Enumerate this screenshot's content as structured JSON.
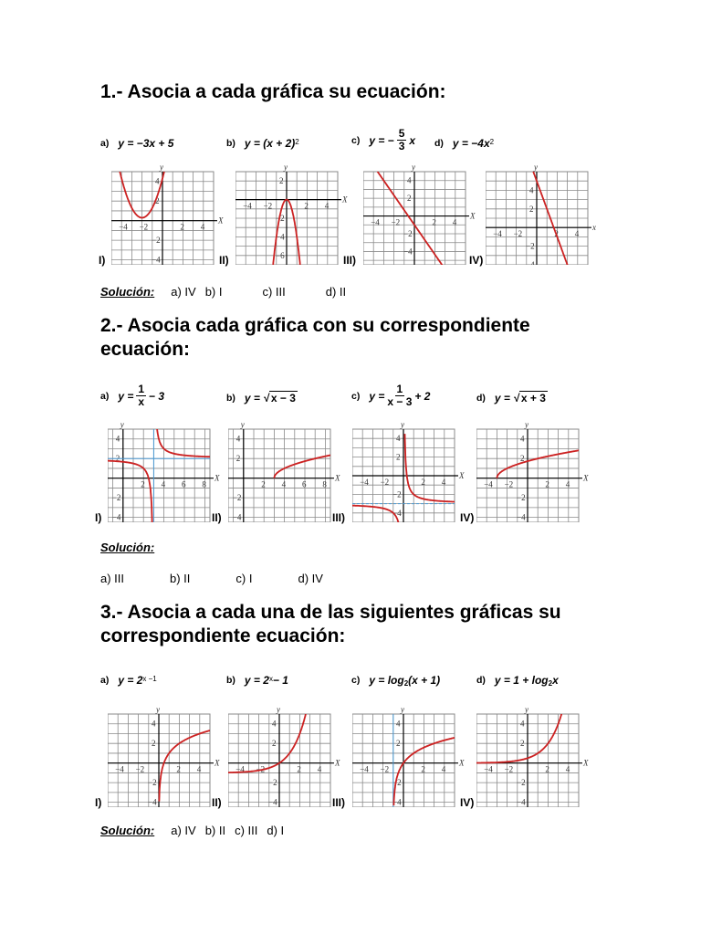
{
  "colors": {
    "curve": "#cc2222",
    "grid": "#8a8a8a",
    "asymptote": "#4a9ad4"
  },
  "sections": [
    {
      "title": "1.- Asocia a cada gráfica su ecuación:",
      "equations": [
        {
          "label": "a)",
          "lhs": "y = −3x + 5"
        },
        {
          "label": "b)",
          "lhs": "y = (x + 2)",
          "sup": "2"
        },
        {
          "label": "c)",
          "lhs": "y = −",
          "num": "5",
          "den": "3",
          "rhs": "x"
        },
        {
          "label": "d)",
          "lhs": "y = −4x",
          "sup": "2"
        }
      ],
      "graphs": [
        {
          "label": "I)",
          "xlim": [
            -5,
            5
          ],
          "ylim": [
            -4.5,
            5
          ],
          "fn": "sq_shift",
          "axis_x": "X",
          "axis_y": "y"
        },
        {
          "label": "II)",
          "xlim": [
            -5,
            5
          ],
          "ylim": [
            -7,
            3
          ],
          "fn": "neg4sq",
          "axis_x": "X",
          "axis_y": "y"
        },
        {
          "label": "III)",
          "xlim": [
            -5,
            5
          ],
          "ylim": [
            -5.5,
            5
          ],
          "fn": "lin53",
          "axis_x": "X",
          "axis_y": "y"
        },
        {
          "label": "IV)",
          "xlim": [
            -5,
            5
          ],
          "ylim": [
            -4,
            6
          ],
          "fn": "lin35",
          "axis_x": "x",
          "axis_y": "y"
        }
      ],
      "solution_label": "Solución:",
      "solution": [
        "a) IV",
        "b) I",
        "c) III",
        "d)  II"
      ]
    },
    {
      "title": "2.- Asocia cada gráfica con su correspondiente ecuación:",
      "equations": [
        {
          "label": "a)",
          "lhs": "y =",
          "num": "1",
          "den": "x",
          "rhs": "− 3"
        },
        {
          "label": "b)",
          "lhs": "y = √",
          "rad": "x − 3"
        },
        {
          "label": "c)",
          "lhs": "y =",
          "num": "1",
          "den": "x − 3",
          "rhs": "+ 2"
        },
        {
          "label": "d)",
          "lhs": "y = √",
          "rad": "x + 3"
        }
      ],
      "graphs": [
        {
          "label": "I)",
          "xlim": [
            -1.5,
            8.5
          ],
          "ylim": [
            -4.5,
            5
          ],
          "fn": "hyp_c",
          "asym": {
            "x": 3,
            "y": 2
          },
          "axis_x": "X",
          "axis_y": "y"
        },
        {
          "label": "II)",
          "xlim": [
            -1.5,
            8.5
          ],
          "ylim": [
            -4.5,
            5
          ],
          "fn": "sqrt_m3",
          "axis_x": "X",
          "axis_y": "y"
        },
        {
          "label": "III)",
          "xlim": [
            -5,
            5
          ],
          "ylim": [
            -5,
            5
          ],
          "fn": "hyp_a",
          "asym": {
            "y": -3
          },
          "axis_x": "X",
          "axis_y": "y"
        },
        {
          "label": "IV)",
          "xlim": [
            -5,
            5
          ],
          "ylim": [
            -4.5,
            5
          ],
          "fn": "sqrt_p3",
          "axis_x": "X",
          "axis_y": "y"
        }
      ],
      "solution_label": "Solución:",
      "solution": [
        "a) III",
        "b) II",
        "c) I",
        "d) IV"
      ]
    },
    {
      "title": "3.- Asocia a cada una de las siguientes gráficas su correspondiente ecuación:",
      "equations": [
        {
          "label": "a)",
          "lhs": "y = 2",
          "sup": "x −1"
        },
        {
          "label": "b)",
          "lhs": "y = 2",
          "sup": "x",
          "rhs": " − 1"
        },
        {
          "label": "c)",
          "lhs": "y = log",
          "sub": "2",
          "rhs": "(x + 1)"
        },
        {
          "label": "d)",
          "lhs": "y = 1 + log",
          "sub": "2",
          "rhs": "x"
        }
      ],
      "graphs": [
        {
          "label": "I)",
          "xlim": [
            -5,
            5
          ],
          "ylim": [
            -4.5,
            5
          ],
          "fn": "log1",
          "axis_x": "X",
          "axis_y": "y"
        },
        {
          "label": "II)",
          "xlim": [
            -5,
            5
          ],
          "ylim": [
            -4.5,
            5
          ],
          "fn": "exp_m1",
          "axis_x": "X",
          "axis_y": "y"
        },
        {
          "label": "III)",
          "xlim": [
            -5,
            5
          ],
          "ylim": [
            -4.5,
            5
          ],
          "fn": "logp1",
          "asym": {
            "x": -1
          },
          "axis_x": "X",
          "axis_y": "y"
        },
        {
          "label": "IV)",
          "xlim": [
            -5,
            5
          ],
          "ylim": [
            -4.5,
            5
          ],
          "fn": "exp_sh",
          "axis_x": "X",
          "axis_y": "y"
        }
      ],
      "solution_label": "Solución:",
      "solution": [
        "a) IV",
        "b) II",
        "c) III",
        "d) I"
      ]
    }
  ]
}
